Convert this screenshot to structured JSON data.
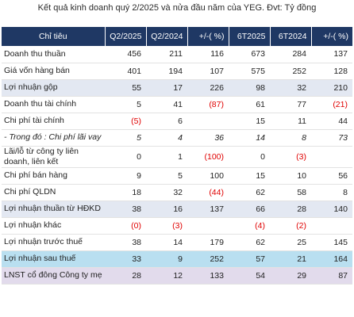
{
  "title": "Kết quả kinh doanh quý 2/2025 và nửa đầu năm của YEG. Đvt: Tỷ đồng",
  "columns": [
    "Chỉ tiêu",
    "Q2/2025",
    "Q2/2024",
    "+/-( %)",
    "6T2025",
    "6T2024",
    "+/-( %)"
  ],
  "rows": [
    {
      "label": "Doanh thu thuần",
      "style": "",
      "cells": [
        "456",
        "211",
        "116",
        "673",
        "284",
        "137"
      ],
      "neg": []
    },
    {
      "label": "Giá vốn hàng bán",
      "style": "",
      "cells": [
        "401",
        "194",
        "107",
        "575",
        "252",
        "128"
      ],
      "neg": []
    },
    {
      "label": "Lợi nhuận gộp",
      "style": "gray",
      "cells": [
        "55",
        "17",
        "226",
        "98",
        "32",
        "210"
      ],
      "neg": []
    },
    {
      "label": "Doanh thu tài chính",
      "style": "",
      "cells": [
        "5",
        "41",
        "(87)",
        "61",
        "77",
        "(21)"
      ],
      "neg": [
        2,
        5
      ]
    },
    {
      "label": "Chi phí tài chính",
      "style": "",
      "cells": [
        "(5)",
        "6",
        "",
        "15",
        "11",
        "44"
      ],
      "neg": [
        0
      ]
    },
    {
      "label": "- Trong đó : Chi phí lãi vay",
      "style": "italic",
      "cells": [
        "5",
        "4",
        "36",
        "14",
        "8",
        "73"
      ],
      "neg": []
    },
    {
      "label": "Lãi/lỗ từ công ty liên doanh, liên kết",
      "style": "tall",
      "cells": [
        "0",
        "1",
        "(100)",
        "0",
        "(3)",
        ""
      ],
      "neg": [
        2,
        4
      ]
    },
    {
      "label": "Chi phí bán hàng",
      "style": "",
      "cells": [
        "9",
        "5",
        "100",
        "15",
        "10",
        "56"
      ],
      "neg": []
    },
    {
      "label": "Chi phí QLDN",
      "style": "",
      "cells": [
        "18",
        "32",
        "(44)",
        "62",
        "58",
        "8"
      ],
      "neg": [
        2
      ]
    },
    {
      "label": "Lợi nhuận thuần từ HĐKD",
      "style": "gray",
      "cells": [
        "38",
        "16",
        "137",
        "66",
        "28",
        "140"
      ],
      "neg": []
    },
    {
      "label": "Lợi nhuận khác",
      "style": "",
      "cells": [
        "(0)",
        "(3)",
        "",
        "(4)",
        "(2)",
        ""
      ],
      "neg": [
        0,
        1,
        3,
        4
      ]
    },
    {
      "label": "Lợi nhuận trước thuế",
      "style": "",
      "cells": [
        "38",
        "14",
        "179",
        "62",
        "25",
        "145"
      ],
      "neg": []
    },
    {
      "label": "Lợi nhuận sau thuế",
      "style": "blue",
      "cells": [
        "33",
        "9",
        "252",
        "57",
        "21",
        "164"
      ],
      "neg": []
    },
    {
      "label": "LNST cổ đông Công ty mẹ",
      "style": "purple",
      "cells": [
        "28",
        "12",
        "133",
        "54",
        "29",
        "87"
      ],
      "neg": []
    }
  ]
}
